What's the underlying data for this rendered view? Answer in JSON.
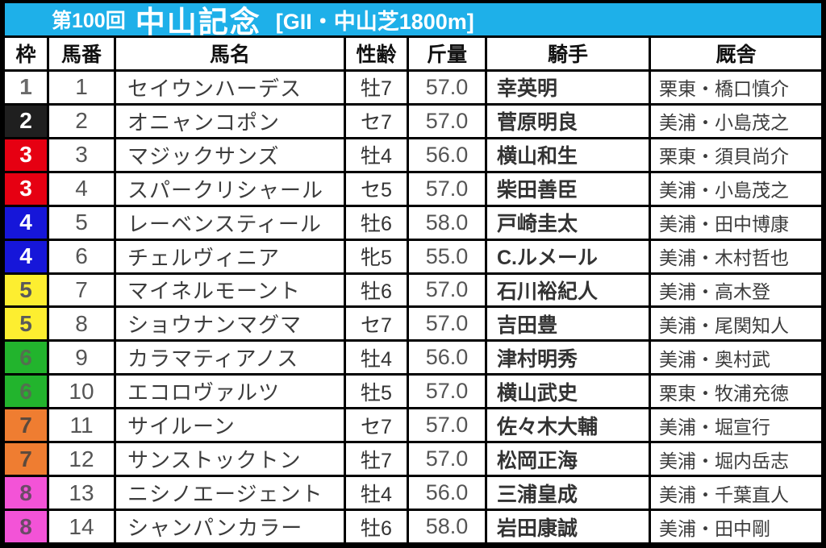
{
  "banner": {
    "edition": "第100回",
    "race_name": "中山記念",
    "race_conditions": "[GII・中山芝1800m]",
    "bg_color": "#1eb0e9"
  },
  "table": {
    "headers": {
      "waku": "枠",
      "umaban": "馬番",
      "name": "馬名",
      "sex_age": "性齢",
      "weight": "斤量",
      "jockey": "騎手",
      "stable": "厩舎"
    },
    "rows": [
      {
        "waku": "1",
        "waku_bg": "#ffffff",
        "waku_fg": "#6a6a6a",
        "umaban": "1",
        "name": "セイウンハーデス",
        "sex_age": "牡7",
        "weight": "57.0",
        "jockey": "幸英明",
        "stable": "栗東・橋口慎介"
      },
      {
        "waku": "2",
        "waku_bg": "#1f1f1f",
        "waku_fg": "#ffffff",
        "umaban": "2",
        "name": "オニャンコポン",
        "sex_age": "セ7",
        "weight": "57.0",
        "jockey": "菅原明良",
        "stable": "美浦・小島茂之"
      },
      {
        "waku": "3",
        "waku_bg": "#e60012",
        "waku_fg": "#ffffff",
        "umaban": "3",
        "name": "マジックサンズ",
        "sex_age": "牡4",
        "weight": "56.0",
        "jockey": "横山和生",
        "stable": "栗東・須貝尚介"
      },
      {
        "waku": "3",
        "waku_bg": "#e60012",
        "waku_fg": "#ffffff",
        "umaban": "4",
        "name": "スパークリシャール",
        "sex_age": "セ5",
        "weight": "57.0",
        "jockey": "柴田善臣",
        "stable": "美浦・小島茂之"
      },
      {
        "waku": "4",
        "waku_bg": "#1616d9",
        "waku_fg": "#ffffff",
        "umaban": "5",
        "name": "レーベンスティール",
        "sex_age": "牡6",
        "weight": "58.0",
        "jockey": "戸崎圭太",
        "stable": "美浦・田中博康"
      },
      {
        "waku": "4",
        "waku_bg": "#1616d9",
        "waku_fg": "#ffffff",
        "umaban": "6",
        "name": "チェルヴィニア",
        "sex_age": "牝5",
        "weight": "55.0",
        "jockey": "C.ルメール",
        "stable": "美浦・木村哲也"
      },
      {
        "waku": "5",
        "waku_bg": "#fdee30",
        "waku_fg": "#5a5a5a",
        "umaban": "7",
        "name": "マイネルモーント",
        "sex_age": "牡6",
        "weight": "57.0",
        "jockey": "石川裕紀人",
        "stable": "美浦・高木登"
      },
      {
        "waku": "5",
        "waku_bg": "#fdee30",
        "waku_fg": "#5a5a5a",
        "umaban": "8",
        "name": "ショウナンマグマ",
        "sex_age": "セ7",
        "weight": "57.0",
        "jockey": "吉田豊",
        "stable": "美浦・尾関知人"
      },
      {
        "waku": "6",
        "waku_bg": "#22b42d",
        "waku_fg": "#53704f",
        "umaban": "9",
        "name": "カラマティアノス",
        "sex_age": "牡4",
        "weight": "56.0",
        "jockey": "津村明秀",
        "stable": "美浦・奥村武"
      },
      {
        "waku": "6",
        "waku_bg": "#22b42d",
        "waku_fg": "#53704f",
        "umaban": "10",
        "name": "エコロヴァルツ",
        "sex_age": "牡5",
        "weight": "57.0",
        "jockey": "横山武史",
        "stable": "栗東・牧浦充徳"
      },
      {
        "waku": "7",
        "waku_bg": "#ef7d31",
        "waku_fg": "#5d4a3c",
        "umaban": "11",
        "name": "サイルーン",
        "sex_age": "セ7",
        "weight": "57.0",
        "jockey": "佐々木大輔",
        "stable": "美浦・堀宣行"
      },
      {
        "waku": "7",
        "waku_bg": "#ef7d31",
        "waku_fg": "#5d4a3c",
        "umaban": "12",
        "name": "サンストックトン",
        "sex_age": "牡7",
        "weight": "57.0",
        "jockey": "松岡正海",
        "stable": "美浦・堀内岳志"
      },
      {
        "waku": "8",
        "waku_bg": "#f353d7",
        "waku_fg": "#6c4a68",
        "umaban": "13",
        "name": "ニシノエージェント",
        "sex_age": "牡4",
        "weight": "56.0",
        "jockey": "三浦皇成",
        "stable": "美浦・千葉直人"
      },
      {
        "waku": "8",
        "waku_bg": "#f353d7",
        "waku_fg": "#6c4a68",
        "umaban": "14",
        "name": "シャンパンカラー",
        "sex_age": "牡6",
        "weight": "58.0",
        "jockey": "岩田康誠",
        "stable": "美浦・田中剛"
      }
    ]
  }
}
